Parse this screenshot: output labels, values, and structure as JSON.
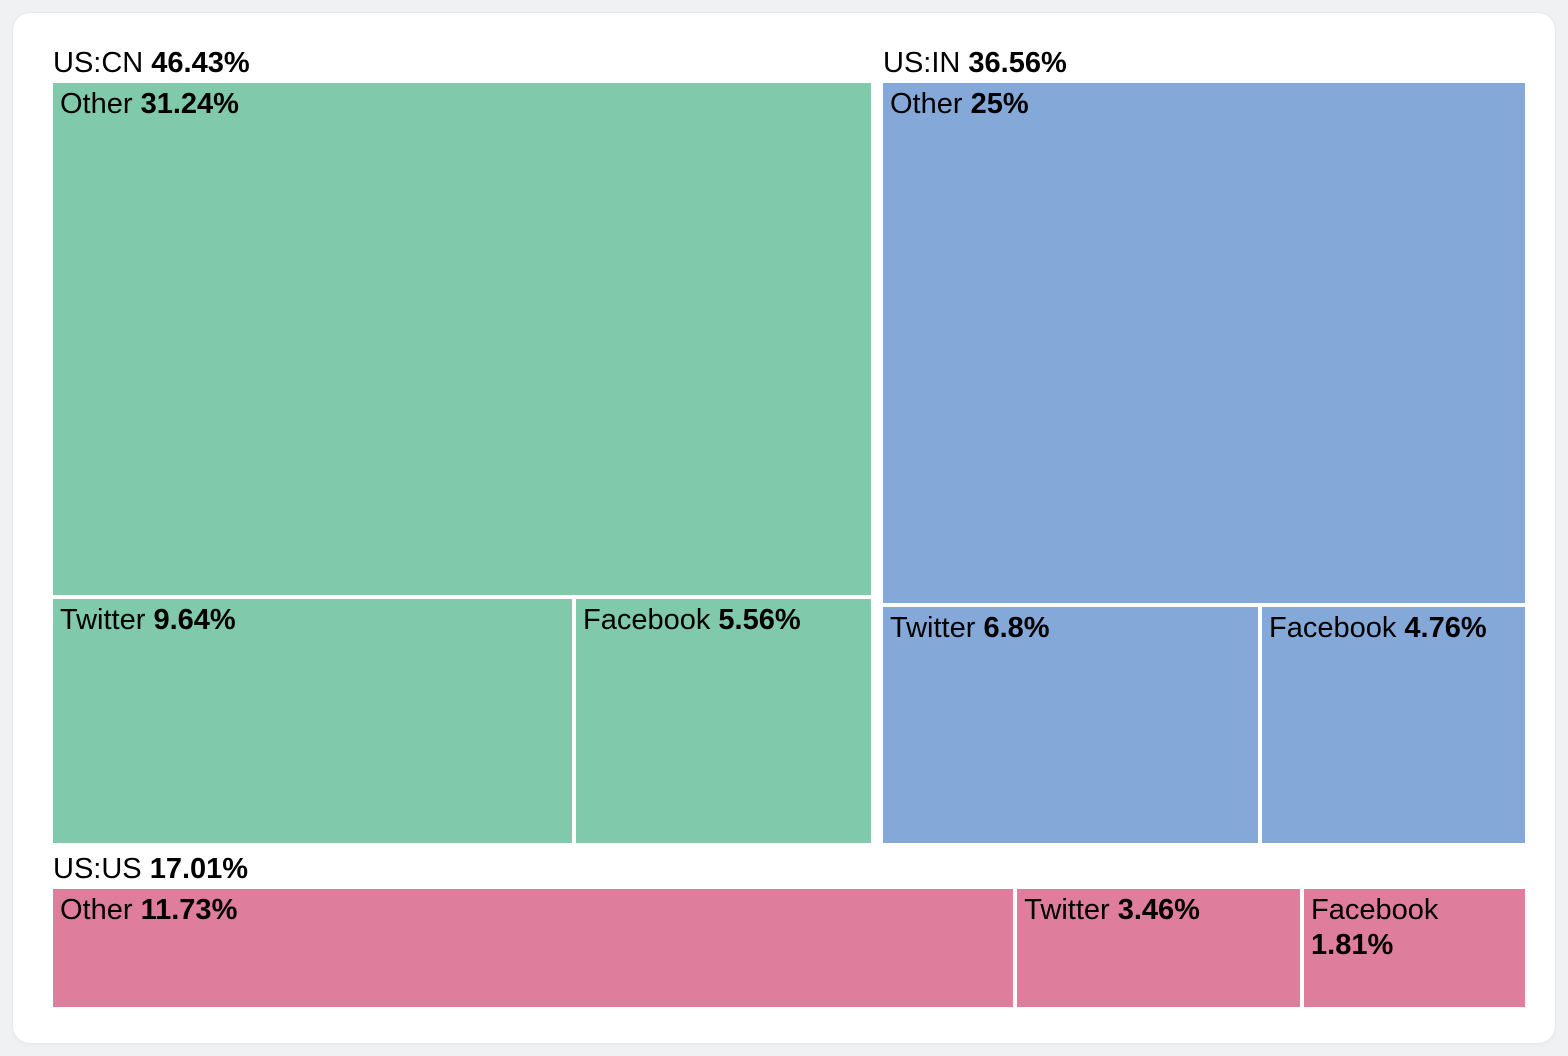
{
  "chart_data": {
    "type": "treemap",
    "title": "",
    "unit": "%",
    "legend": "none",
    "groups": [
      {
        "label": "US:CN",
        "value": 46.43,
        "value_label": "46.43%",
        "color": "#80c9ab",
        "children": [
          {
            "label": "Other",
            "value": 31.24,
            "value_label": "31.24%"
          },
          {
            "label": "Twitter",
            "value": 9.64,
            "value_label": "9.64%"
          },
          {
            "label": "Facebook",
            "value": 5.56,
            "value_label": "5.56%"
          }
        ]
      },
      {
        "label": "US:IN",
        "value": 36.56,
        "value_label": "36.56%",
        "color": "#84a9d8",
        "children": [
          {
            "label": "Other",
            "value": 25,
            "value_label": "25%"
          },
          {
            "label": "Twitter",
            "value": 6.8,
            "value_label": "6.8%"
          },
          {
            "label": "Facebook",
            "value": 4.76,
            "value_label": "4.76%"
          }
        ]
      },
      {
        "label": "US:US",
        "value": 17.01,
        "value_label": "17.01%",
        "color": "#df7d9d",
        "children": [
          {
            "label": "Other",
            "value": 11.73,
            "value_label": "11.73%"
          },
          {
            "label": "Twitter",
            "value": 3.46,
            "value_label": "3.46%"
          },
          {
            "label": "Facebook",
            "value": 1.81,
            "value_label": "1.81%"
          }
        ]
      }
    ]
  }
}
